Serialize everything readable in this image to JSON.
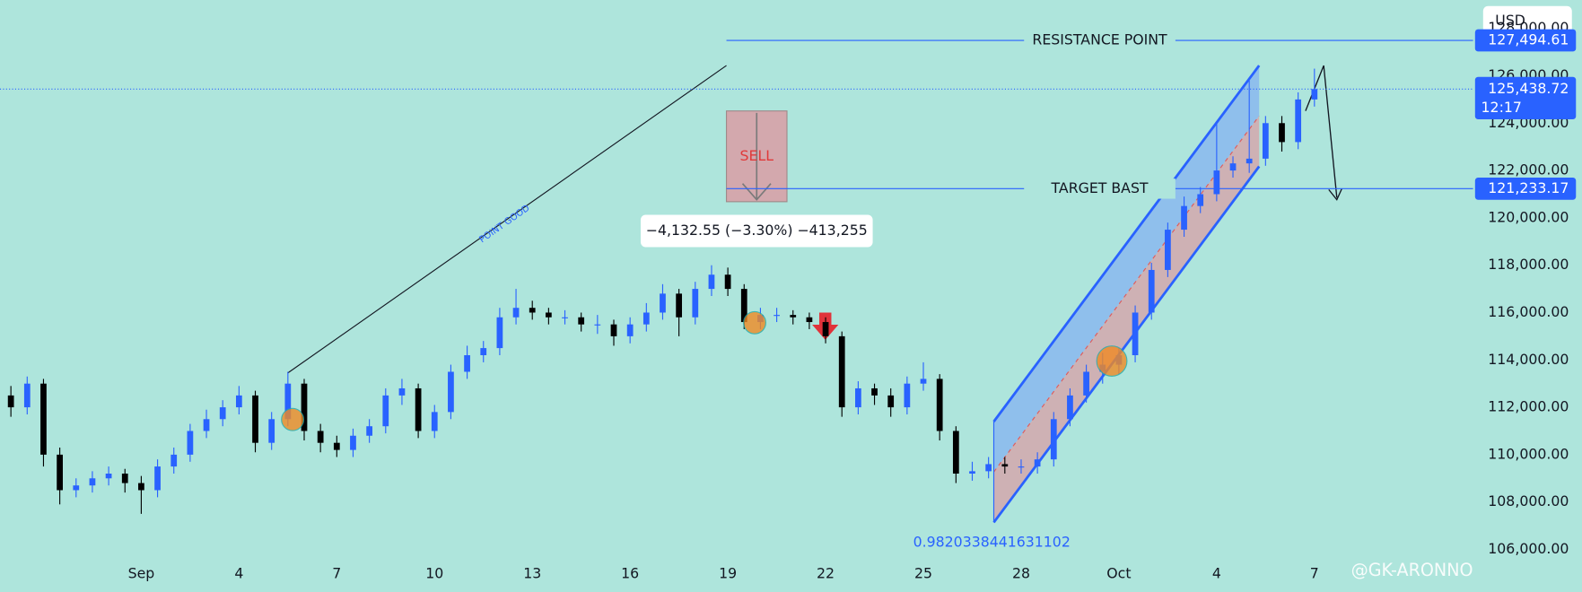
{
  "chart_data": {
    "type": "candlestick",
    "currency": "USD",
    "up_color": "#2962ff",
    "down_color": "#000000",
    "categories": [
      null,
      null,
      null,
      null,
      null,
      null,
      null,
      null,
      "Sep",
      null,
      null,
      null,
      null,
      null,
      "4",
      null,
      null,
      null,
      null,
      null,
      "7",
      null,
      null,
      null,
      null,
      null,
      "10",
      null,
      null,
      null,
      null,
      null,
      "13",
      null,
      null,
      null,
      null,
      null,
      "16",
      null,
      null,
      null,
      null,
      null,
      "19",
      null,
      null,
      null,
      null,
      null,
      "22",
      null,
      null,
      null,
      null,
      null,
      "25",
      null,
      null,
      null,
      null,
      null,
      "28",
      null,
      null,
      null,
      null,
      null,
      "Oct",
      null,
      null,
      null,
      null,
      null,
      "4",
      null,
      null,
      null,
      null,
      null,
      "7"
    ],
    "open": [
      112500,
      112000,
      113000,
      110000,
      108500,
      108700,
      109000,
      109200,
      108800,
      108500,
      109500,
      110000,
      111000,
      111500,
      112000,
      112500,
      110500,
      111500,
      113000,
      111000,
      110500,
      110200,
      110800,
      111200,
      112500,
      112800,
      111000,
      111800,
      113500,
      114200,
      114500,
      115800,
      116200,
      116000,
      115800,
      115800,
      115500,
      115500,
      115000,
      115500,
      116000,
      116800,
      115800,
      117000,
      117600,
      117000,
      115600,
      115900,
      115900,
      115800,
      115600,
      115000,
      112000,
      112800,
      112500,
      112000,
      113000,
      113200,
      111000,
      109200,
      109300,
      109600,
      109500,
      109500,
      109800,
      111500,
      112500,
      113500,
      113800,
      114200,
      116000,
      117800,
      119500,
      120500,
      121000,
      122000,
      122300,
      122500,
      124000,
      123200,
      125000
    ],
    "high": [
      112900,
      113300,
      113200,
      110300,
      109000,
      109300,
      109500,
      109400,
      109100,
      109800,
      110300,
      111300,
      111900,
      112300,
      112900,
      112700,
      111800,
      113500,
      113200,
      111300,
      110800,
      111100,
      111500,
      112800,
      113200,
      113000,
      112100,
      113800,
      114600,
      114800,
      116200,
      117000,
      116500,
      116200,
      116100,
      116000,
      115900,
      115700,
      115800,
      116400,
      117200,
      117000,
      117300,
      118000,
      117900,
      117200,
      116200,
      116200,
      116100,
      116000,
      115800,
      115200,
      113100,
      113000,
      112800,
      113300,
      113900,
      113400,
      111200,
      109700,
      109900,
      109900,
      109800,
      110100,
      111800,
      112800,
      113800,
      114300,
      114500,
      116300,
      118100,
      119800,
      120900,
      121300,
      124000,
      122600,
      125800,
      124300,
      124300,
      125300,
      126300
    ],
    "low": [
      111600,
      111700,
      109500,
      107900,
      108200,
      108400,
      108700,
      108400,
      107500,
      108200,
      109200,
      109700,
      110700,
      111200,
      111700,
      110100,
      110200,
      111200,
      110600,
      110100,
      109900,
      109900,
      110500,
      110900,
      112100,
      110700,
      110700,
      111500,
      113200,
      113900,
      114200,
      115500,
      115700,
      115500,
      115500,
      115200,
      115100,
      114600,
      114700,
      115200,
      115700,
      115000,
      115500,
      116700,
      116700,
      115300,
      115300,
      115600,
      115500,
      115300,
      114700,
      111600,
      111700,
      112100,
      111600,
      111700,
      112700,
      110600,
      108800,
      108900,
      109000,
      109200,
      109200,
      109200,
      109500,
      111200,
      112200,
      113000,
      113400,
      113900,
      115700,
      117500,
      119200,
      120200,
      120700,
      121700,
      121900,
      122200,
      122800,
      122900,
      124700
    ],
    "close": [
      112000,
      113000,
      110000,
      108500,
      108700,
      109000,
      109200,
      108800,
      108500,
      109500,
      110000,
      111000,
      111500,
      112000,
      112500,
      110500,
      111500,
      113000,
      111000,
      110500,
      110200,
      110800,
      111200,
      112500,
      112800,
      111000,
      111800,
      113500,
      114200,
      114500,
      115800,
      116200,
      116000,
      115800,
      115800,
      115500,
      115500,
      115000,
      115500,
      116000,
      116800,
      115800,
      117000,
      117600,
      117000,
      115600,
      115900,
      115900,
      115800,
      115600,
      115000,
      112000,
      112800,
      112500,
      112000,
      113000,
      113200,
      111000,
      109200,
      109300,
      109600,
      109500,
      109500,
      109800,
      111500,
      112500,
      113500,
      113800,
      114200,
      116000,
      117800,
      119500,
      120500,
      121000,
      122000,
      122300,
      122500,
      124000,
      123200,
      125000,
      125438.72
    ],
    "ylim": [
      104200,
      129200
    ],
    "yticks": [
      {
        "value": 106000,
        "label": "106,000.00"
      },
      {
        "value": 108000,
        "label": "108,000.00"
      },
      {
        "value": 110000,
        "label": "110,000.00"
      },
      {
        "value": 112000,
        "label": "112,000.00"
      },
      {
        "value": 114000,
        "label": "114,000.00"
      },
      {
        "value": 116000,
        "label": "116,000.00"
      },
      {
        "value": 118000,
        "label": "118,000.00"
      },
      {
        "value": 120000,
        "label": "120,000.00"
      },
      {
        "value": 122000,
        "label": "122,000.00"
      },
      {
        "value": 124000,
        "label": "124,000.00"
      },
      {
        "value": 126000,
        "label": "126,000.00"
      },
      {
        "value": 128000,
        "label": "128,000.00"
      }
    ],
    "grid": false,
    "levels": [
      {
        "name": "RESISTANCE  POINT",
        "value": 127494.61,
        "label": "127,494.61"
      },
      {
        "name": "TARGET  BAST",
        "value": 121233.17,
        "label": "121,233.17"
      }
    ],
    "last_price": {
      "value": 125438.72,
      "label": "125,438.72",
      "countdown": "12:17"
    },
    "annotations": {
      "trend_line": "POINT  GOOD",
      "sell_box": "SELL",
      "measure": "−4,132.55 (−3.30%) −413,255",
      "channel_ratio": "0.9820338441631102"
    },
    "watermark": "@GK-ARONNO"
  }
}
